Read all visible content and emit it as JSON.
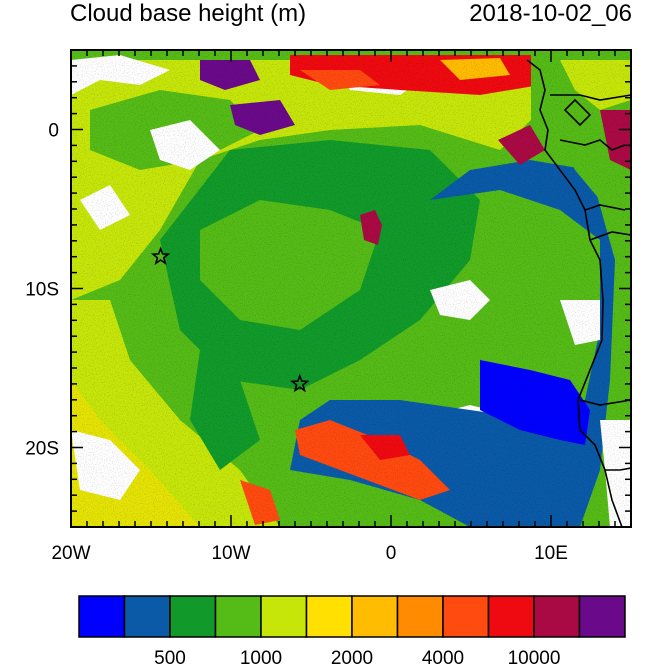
{
  "header": {
    "title": "Cloud base height (m)",
    "timestamp": "2018-10-02_06"
  },
  "map": {
    "lon_range": [
      -20,
      15
    ],
    "lat_range": [
      -25,
      5
    ],
    "x_ticks": [
      {
        "value": -20,
        "label": "20W"
      },
      {
        "value": -10,
        "label": "10W"
      },
      {
        "value": 0,
        "label": "0"
      },
      {
        "value": 10,
        "label": "10E"
      }
    ],
    "y_ticks": [
      {
        "value": 0,
        "label": "0"
      },
      {
        "value": -10,
        "label": "10S"
      },
      {
        "value": -20,
        "label": "20S"
      }
    ],
    "markers": [
      {
        "name": "site-star-west",
        "lon": -14.4,
        "lat": -8.0
      },
      {
        "name": "site-star-south",
        "lon": -5.7,
        "lat": -16.0
      }
    ]
  },
  "colorbar": {
    "colors": [
      "#0000ff",
      "#0a5aa8",
      "#119a2a",
      "#55bb17",
      "#c6e60a",
      "#ffe000",
      "#ffbc00",
      "#ff8c00",
      "#ff4a10",
      "#ee0a10",
      "#aa0a44",
      "#6a0a8a"
    ],
    "labels": [
      {
        "after_box": 2,
        "text": "500"
      },
      {
        "after_box": 4,
        "text": "1000"
      },
      {
        "after_box": 6,
        "text": "2000"
      },
      {
        "after_box": 8,
        "text": "4000"
      },
      {
        "after_box": 10,
        "text": "10000"
      }
    ]
  }
}
